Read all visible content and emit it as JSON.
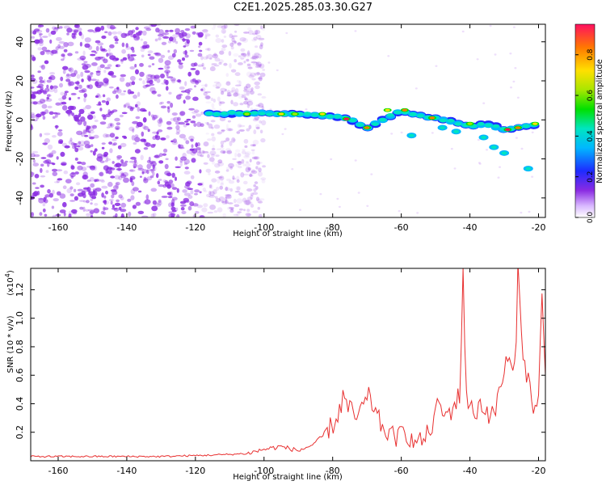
{
  "title": "C2E1.2025.285.03.30.G27",
  "chart_data": [
    {
      "type": "heatmap",
      "name": "spectrogram",
      "xlabel": "Height of straight line (km)",
      "ylabel": "Frequency (Hz)",
      "xlim": [
        -168,
        -18
      ],
      "ylim": [
        -50,
        49
      ],
      "xticks": [
        -160,
        -140,
        -120,
        -100,
        -80,
        -60,
        -40,
        -20
      ],
      "yticks": [
        -40,
        -20,
        0,
        20,
        40
      ],
      "grid": false,
      "colorbar": {
        "label": "Normalized spectral amplitude",
        "ticks": [
          "0.0",
          "0.2",
          "0.4",
          "0.6",
          "0.8"
        ],
        "range": [
          0,
          0.95
        ]
      },
      "signal_trace": [
        {
          "x": -116,
          "f": 3
        },
        {
          "x": -100,
          "f": 3.5
        },
        {
          "x": -90,
          "f": 3
        },
        {
          "x": -80,
          "f": 2
        },
        {
          "x": -75,
          "f": 0
        },
        {
          "x": -70,
          "f": -4
        },
        {
          "x": -60,
          "f": 5
        },
        {
          "x": -55,
          "f": 2
        },
        {
          "x": -50,
          "f": 1
        },
        {
          "x": -45,
          "f": -1
        },
        {
          "x": -40,
          "f": -3
        },
        {
          "x": -35,
          "f": -2
        },
        {
          "x": -30,
          "f": -5
        },
        {
          "x": -25,
          "f": -4
        },
        {
          "x": -20,
          "f": -2
        }
      ]
    },
    {
      "type": "line",
      "name": "snr",
      "xlabel": "Height of straight line (km)",
      "ylabel": "SNR (10 * v/v)",
      "scale_label": "(x10",
      "scale_exp": "4",
      "scale_close": ")",
      "xlim": [
        -168,
        -18
      ],
      "ylim": [
        0,
        1.35
      ],
      "xticks": [
        -160,
        -140,
        -120,
        -100,
        -80,
        -60,
        -40,
        -20
      ],
      "yticks": [
        "0.2",
        "0.4",
        "0.6",
        "0.8",
        "1.0",
        "1.2"
      ],
      "series": [
        {
          "name": "SNR",
          "color": "#e83030",
          "points": [
            [
              -168,
              0.03
            ],
            [
              -150,
              0.03
            ],
            [
              -130,
              0.03
            ],
            [
              -115,
              0.04
            ],
            [
              -105,
              0.05
            ],
            [
              -100,
              0.08
            ],
            [
              -95,
              0.1
            ],
            [
              -90,
              0.07
            ],
            [
              -85,
              0.12
            ],
            [
              -82,
              0.2
            ],
            [
              -79,
              0.28
            ],
            [
              -77,
              0.44
            ],
            [
              -75,
              0.35
            ],
            [
              -73,
              0.3
            ],
            [
              -71,
              0.38
            ],
            [
              -69,
              0.45
            ],
            [
              -67,
              0.3
            ],
            [
              -65,
              0.22
            ],
            [
              -63,
              0.18
            ],
            [
              -61,
              0.16
            ],
            [
              -59,
              0.22
            ],
            [
              -57,
              0.14
            ],
            [
              -55,
              0.13
            ],
            [
              -53,
              0.16
            ],
            [
              -51,
              0.25
            ],
            [
              -49,
              0.4
            ],
            [
              -47,
              0.3
            ],
            [
              -45,
              0.38
            ],
            [
              -43,
              0.45
            ],
            [
              -42,
              1.33
            ],
            [
              -41,
              0.45
            ],
            [
              -39,
              0.32
            ],
            [
              -37,
              0.4
            ],
            [
              -35,
              0.35
            ],
            [
              -33,
              0.3
            ],
            [
              -31,
              0.55
            ],
            [
              -29,
              0.7
            ],
            [
              -27,
              0.6
            ],
            [
              -26,
              1.3
            ],
            [
              -25,
              0.9
            ],
            [
              -23,
              0.55
            ],
            [
              -21,
              0.35
            ],
            [
              -20,
              0.45
            ],
            [
              -19,
              1.1
            ],
            [
              -18,
              0.6
            ]
          ]
        }
      ]
    }
  ],
  "colors": {
    "noise": "#8a2be2",
    "line": "#e83030"
  }
}
